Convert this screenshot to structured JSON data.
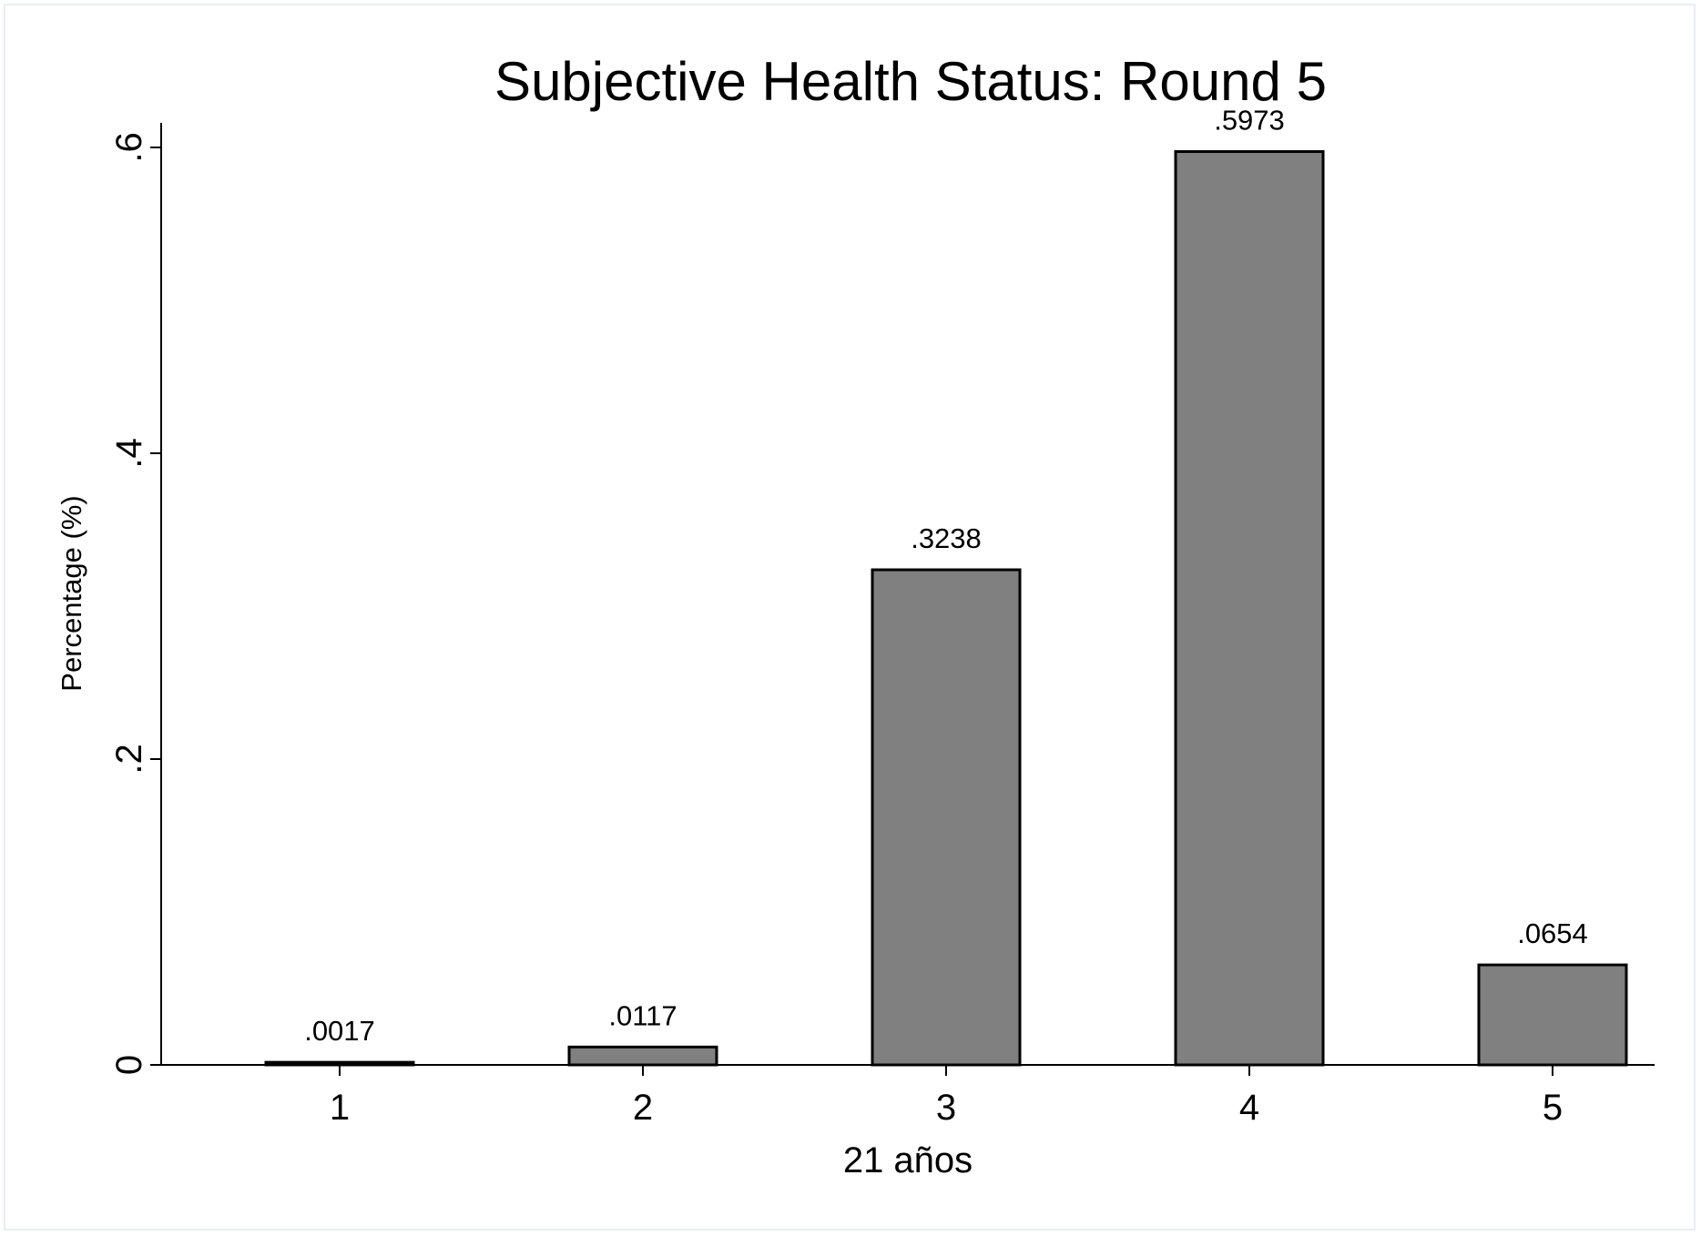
{
  "chart_data": {
    "type": "bar",
    "title": "Subjective Health Status: Round 5",
    "xlabel": "21 años",
    "ylabel": "Percentage (%)",
    "categories": [
      "1",
      "2",
      "3",
      "4",
      "5"
    ],
    "values": [
      0.0017,
      0.0117,
      0.3238,
      0.5973,
      0.0654
    ],
    "value_labels": [
      ".0017",
      ".0117",
      ".3238",
      ".5973",
      ".0654"
    ],
    "ylim": [
      0,
      0.6
    ],
    "yticks": [
      0,
      0.2,
      0.4,
      0.6
    ],
    "ytick_labels": [
      "0",
      ".2",
      ".4",
      ".6"
    ],
    "grid": false,
    "bar_color": "#808080",
    "bar_edge_color": "#000000"
  }
}
